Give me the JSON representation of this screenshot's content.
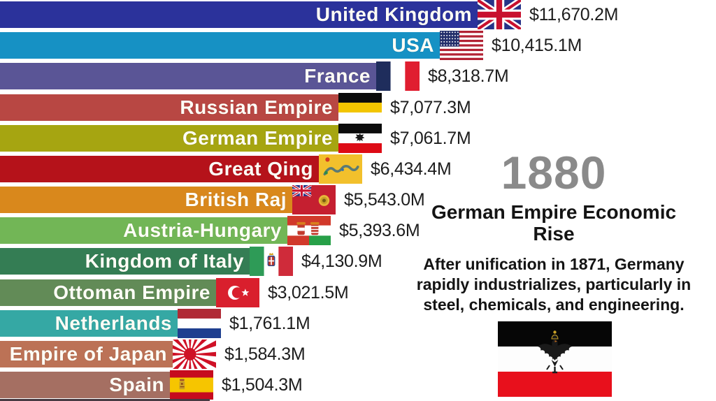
{
  "chart_data": {
    "type": "bar",
    "orientation": "horizontal",
    "title": "German Empire Economic\nRise",
    "year_label": "1880",
    "description": "After unification in 1871, Germany\nrapidly industrializes, particularly in\nsteel, chemicals, and engineering.",
    "value_unit": "$M (millions)",
    "legend_position": "none",
    "grid": false,
    "categories": [
      "United Kingdom",
      "USA",
      "France",
      "Russian Empire",
      "German Empire",
      "Great Qing",
      "British Raj",
      "Austria-Hungary",
      "Kingdom of Italy",
      "Ottoman Empire",
      "Netherlands",
      "Empire of Japan",
      "Spain"
    ],
    "values": [
      11670.2,
      10415.1,
      8318.7,
      7077.3,
      7061.7,
      6434.4,
      5543.0,
      5393.6,
      4130.9,
      3021.5,
      1761.1,
      1584.3,
      1504.3
    ],
    "bars": [
      {
        "rank": 1,
        "label": "United Kingdom",
        "value": 11670.2,
        "display_value": "$11,670.2M",
        "color": "#2b329b",
        "flag": "united-kingdom"
      },
      {
        "rank": 2,
        "label": "USA",
        "value": 10415.1,
        "display_value": "$10,415.1M",
        "color": "#1691c4",
        "flag": "usa"
      },
      {
        "rank": 3,
        "label": "France",
        "value": 8318.7,
        "display_value": "$8,318.7M",
        "color": "#5a5596",
        "flag": "france"
      },
      {
        "rank": 4,
        "label": "Russian Empire",
        "value": 7077.3,
        "display_value": "$7,077.3M",
        "color": "#b84743",
        "flag": "russian-empire"
      },
      {
        "rank": 5,
        "label": "German Empire",
        "value": 7061.7,
        "display_value": "$7,061.7M",
        "color": "#a6a511",
        "flag": "german-empire"
      },
      {
        "rank": 6,
        "label": "Great Qing",
        "value": 6434.4,
        "display_value": "$6,434.4M",
        "color": "#b5121a",
        "flag": "great-qing"
      },
      {
        "rank": 7,
        "label": "British Raj",
        "value": 5543.0,
        "display_value": "$5,543.0M",
        "color": "#d9881c",
        "flag": "british-raj"
      },
      {
        "rank": 8,
        "label": "Austria-Hungary",
        "value": 5393.6,
        "display_value": "$5,393.6M",
        "color": "#72b656",
        "flag": "austria-hungary"
      },
      {
        "rank": 9,
        "label": "Kingdom of Italy",
        "value": 4130.9,
        "display_value": "$4,130.9M",
        "color": "#347d54",
        "flag": "kingdom-of-italy"
      },
      {
        "rank": 10,
        "label": "Ottoman Empire",
        "value": 3021.5,
        "display_value": "$3,021.5M",
        "color": "#628b57",
        "flag": "ottoman-empire"
      },
      {
        "rank": 11,
        "label": "Netherlands",
        "value": 1761.1,
        "display_value": "$1,761.1M",
        "color": "#35a8a4",
        "flag": "netherlands"
      },
      {
        "rank": 12,
        "label": "Empire of Japan",
        "value": 1584.3,
        "display_value": "$1,584.3M",
        "color": "#bc7256",
        "flag": "empire-of-japan"
      },
      {
        "rank": 13,
        "label": "Spain",
        "value": 1504.3,
        "display_value": "$1,504.3M",
        "color": "#a56f62",
        "flag": "spain"
      }
    ],
    "next_bar_partial": {
      "color": "#473a42"
    }
  },
  "side_panel": {
    "year": "1880",
    "year_color": "#8a8a8a",
    "headline": "German Empire Economic\nRise",
    "body_text": "After unification in 1871, Germany\nrapidly industrializes, particularly in\nsteel, chemicals, and engineering.",
    "flag": "german-empire"
  }
}
